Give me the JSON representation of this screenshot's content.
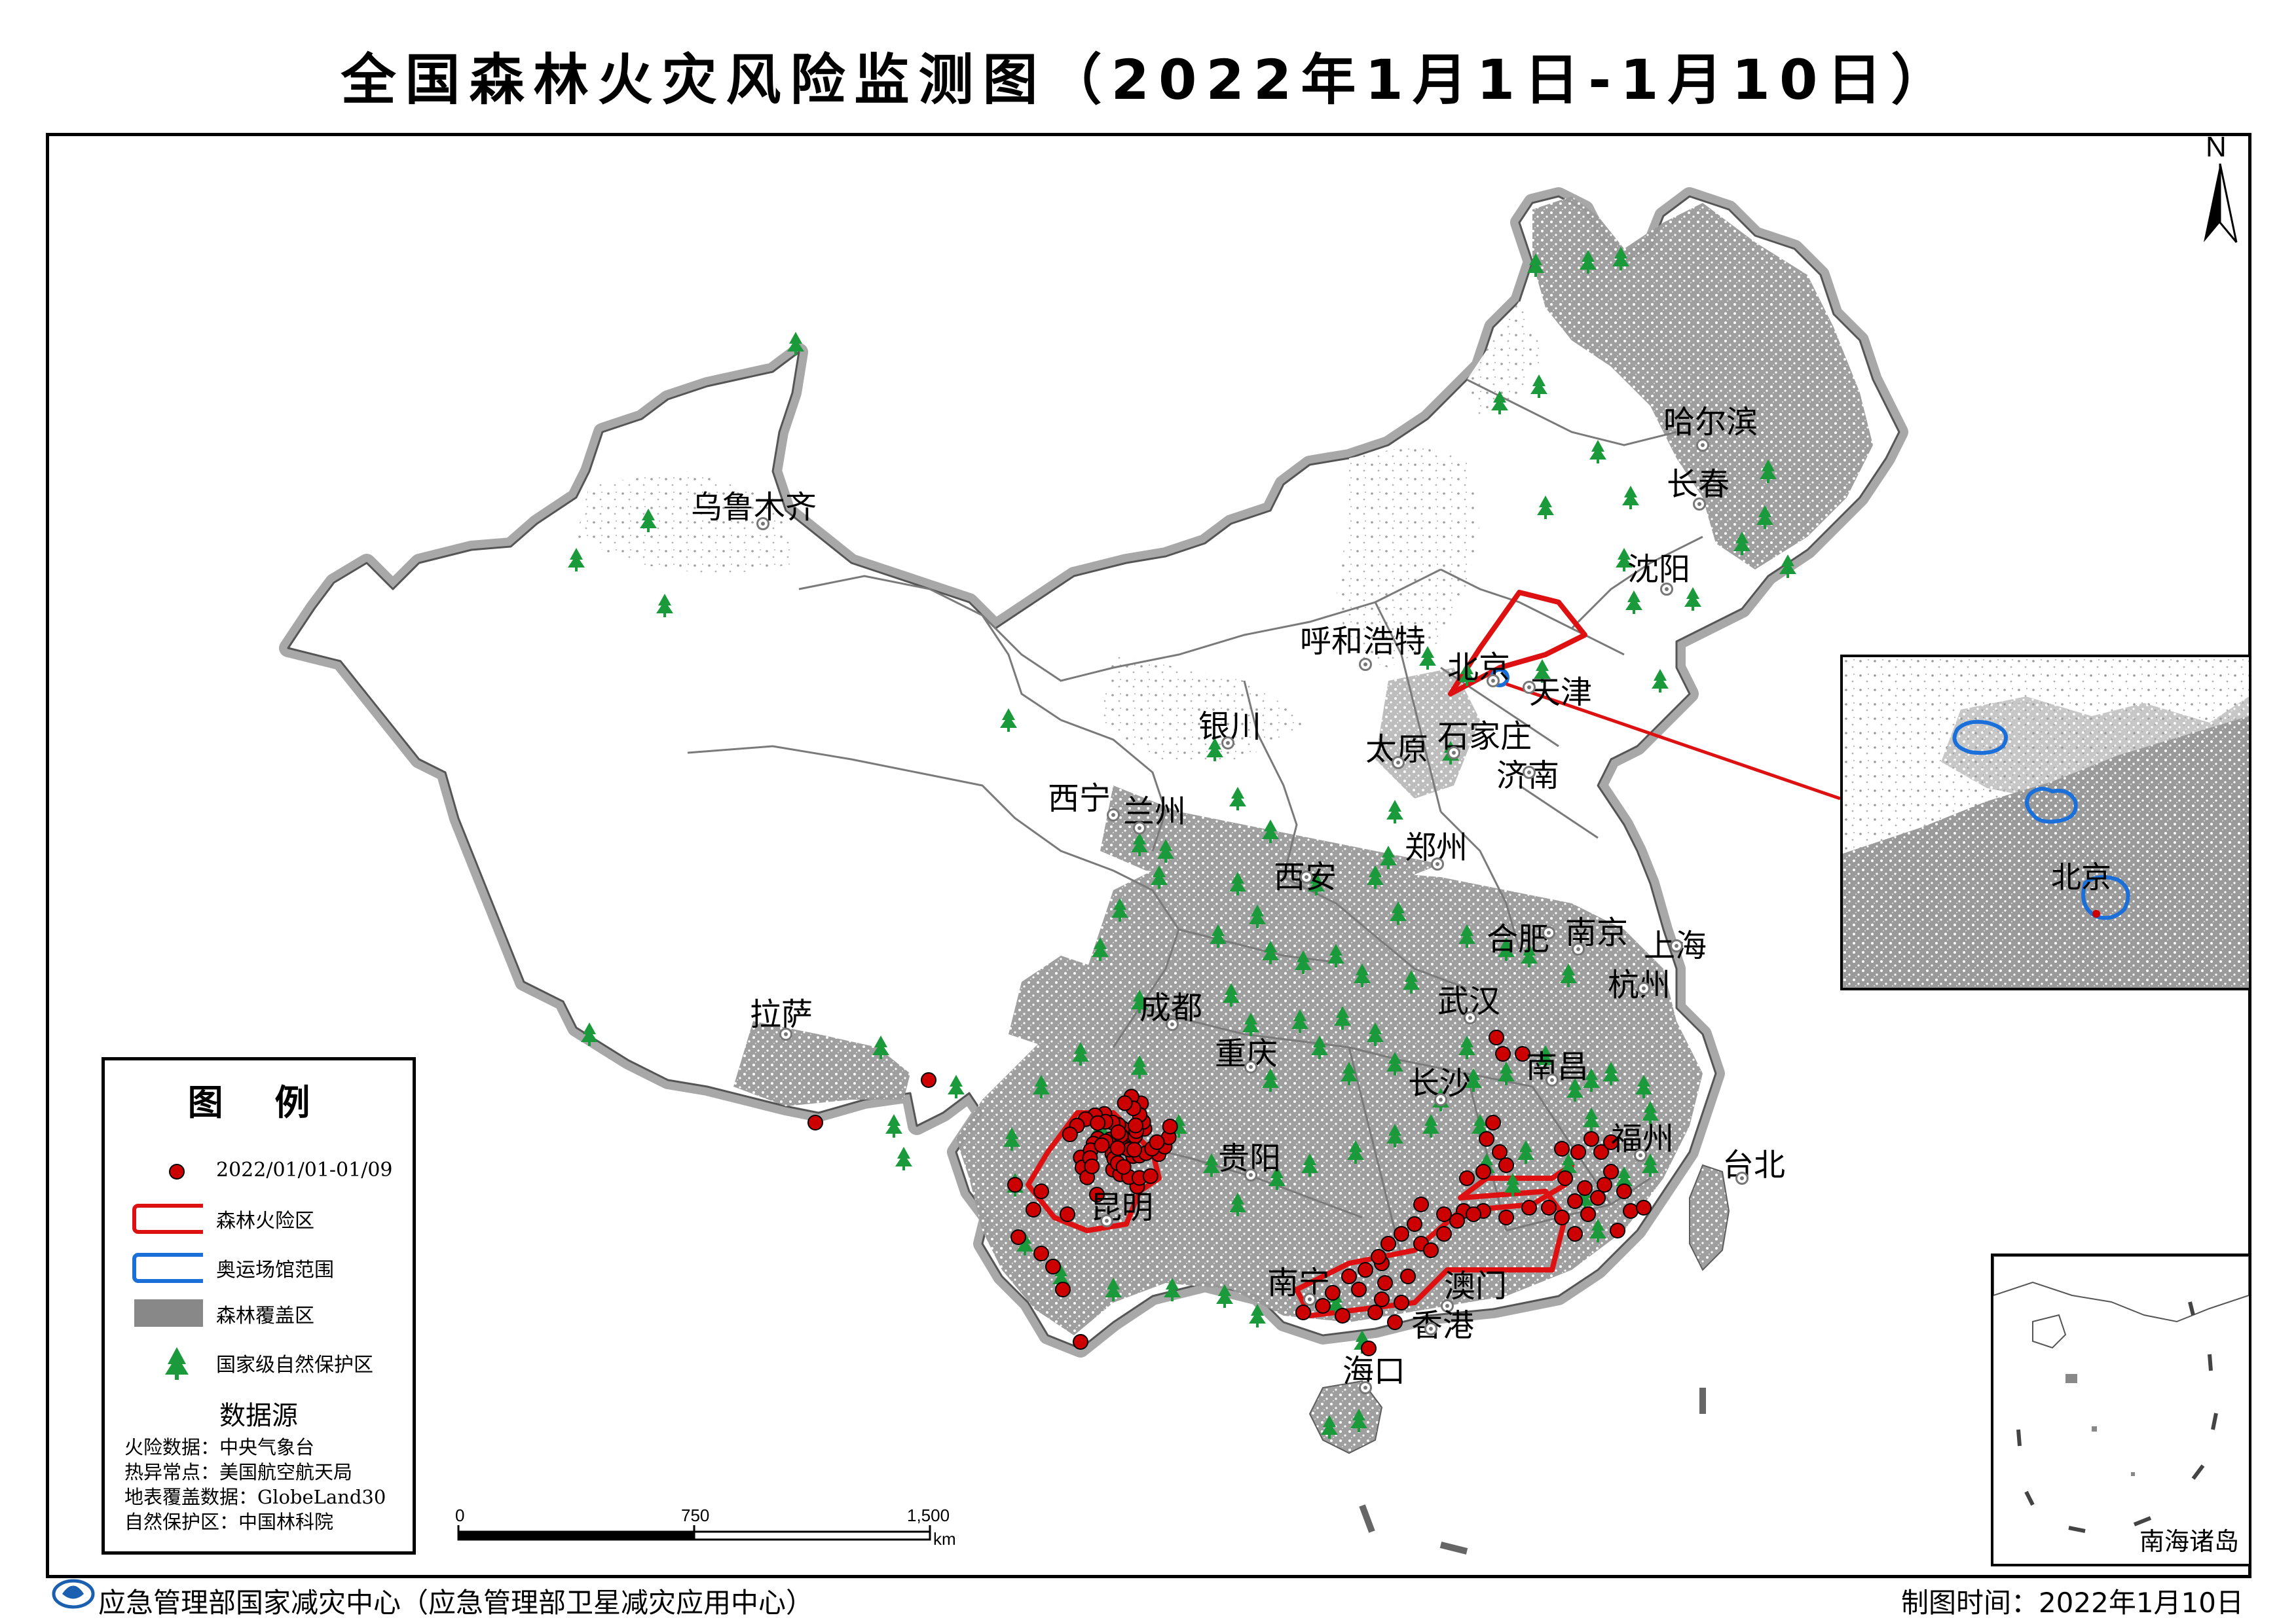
{
  "title": "全国森林火灾风险监测图（2022年1月1日-1月10日）",
  "north_label": "N",
  "cities": [
    {
      "name": "乌鲁木齐"
    },
    {
      "name": "哈尔滨"
    },
    {
      "name": "长春"
    },
    {
      "name": "沈阳"
    },
    {
      "name": "呼和浩特"
    },
    {
      "name": "北京"
    },
    {
      "name": "天津"
    },
    {
      "name": "银川"
    },
    {
      "name": "太原"
    },
    {
      "name": "石家庄"
    },
    {
      "name": "济南"
    },
    {
      "name": "西宁"
    },
    {
      "name": "兰州"
    },
    {
      "name": "郑州"
    },
    {
      "name": "西安"
    },
    {
      "name": "合肥"
    },
    {
      "name": "南京"
    },
    {
      "name": "上海"
    },
    {
      "name": "拉萨"
    },
    {
      "name": "成都"
    },
    {
      "name": "武汉"
    },
    {
      "name": "杭州"
    },
    {
      "name": "重庆"
    },
    {
      "name": "南昌"
    },
    {
      "name": "长沙"
    },
    {
      "name": "福州"
    },
    {
      "name": "台北"
    },
    {
      "name": "贵阳"
    },
    {
      "name": "昆明"
    },
    {
      "name": "南宁"
    },
    {
      "name": "澳门"
    },
    {
      "name": "香港"
    },
    {
      "name": "海口"
    }
  ],
  "legend": {
    "title": "图 例",
    "items": [
      {
        "label": "2022/01/01-01/09",
        "symbol": "hotspot-dot",
        "color": "#cc0000"
      },
      {
        "label": "森林火险区",
        "symbol": "rounded-rect-outline",
        "color": "#dd1111"
      },
      {
        "label": "奥运场馆范围",
        "symbol": "rounded-rect-outline",
        "color": "#1a6fd8"
      },
      {
        "label": "森林覆盖区",
        "symbol": "filled-rect",
        "color": "#888888"
      },
      {
        "label": "国家级自然保护区",
        "symbol": "tree-icon",
        "color": "#1a9a3a"
      }
    ],
    "sources_title": "数据源",
    "sources": [
      "火险数据：中央气象台",
      "热异常点：美国航空航天局",
      "地表覆盖数据：GlobeLand30",
      "自然保护区：中国林科院"
    ]
  },
  "scale_bar": {
    "labels": [
      "0",
      "750",
      "1,500"
    ],
    "unit": "km"
  },
  "insets": {
    "beijing": {
      "city_label": "北京"
    },
    "south_china_sea": {
      "label": "南海诸岛"
    }
  },
  "footer": {
    "agency": "应急管理部国家减灾中心（应急管理部卫星减灾应用中心）",
    "date": "制图时间：2022年1月10日"
  },
  "colors": {
    "hotspot": "#cc0000",
    "risk_zone": "#dd1111",
    "olympic_zone": "#1a6fd8",
    "forest": "#888888",
    "reserve": "#1a9a3a"
  }
}
